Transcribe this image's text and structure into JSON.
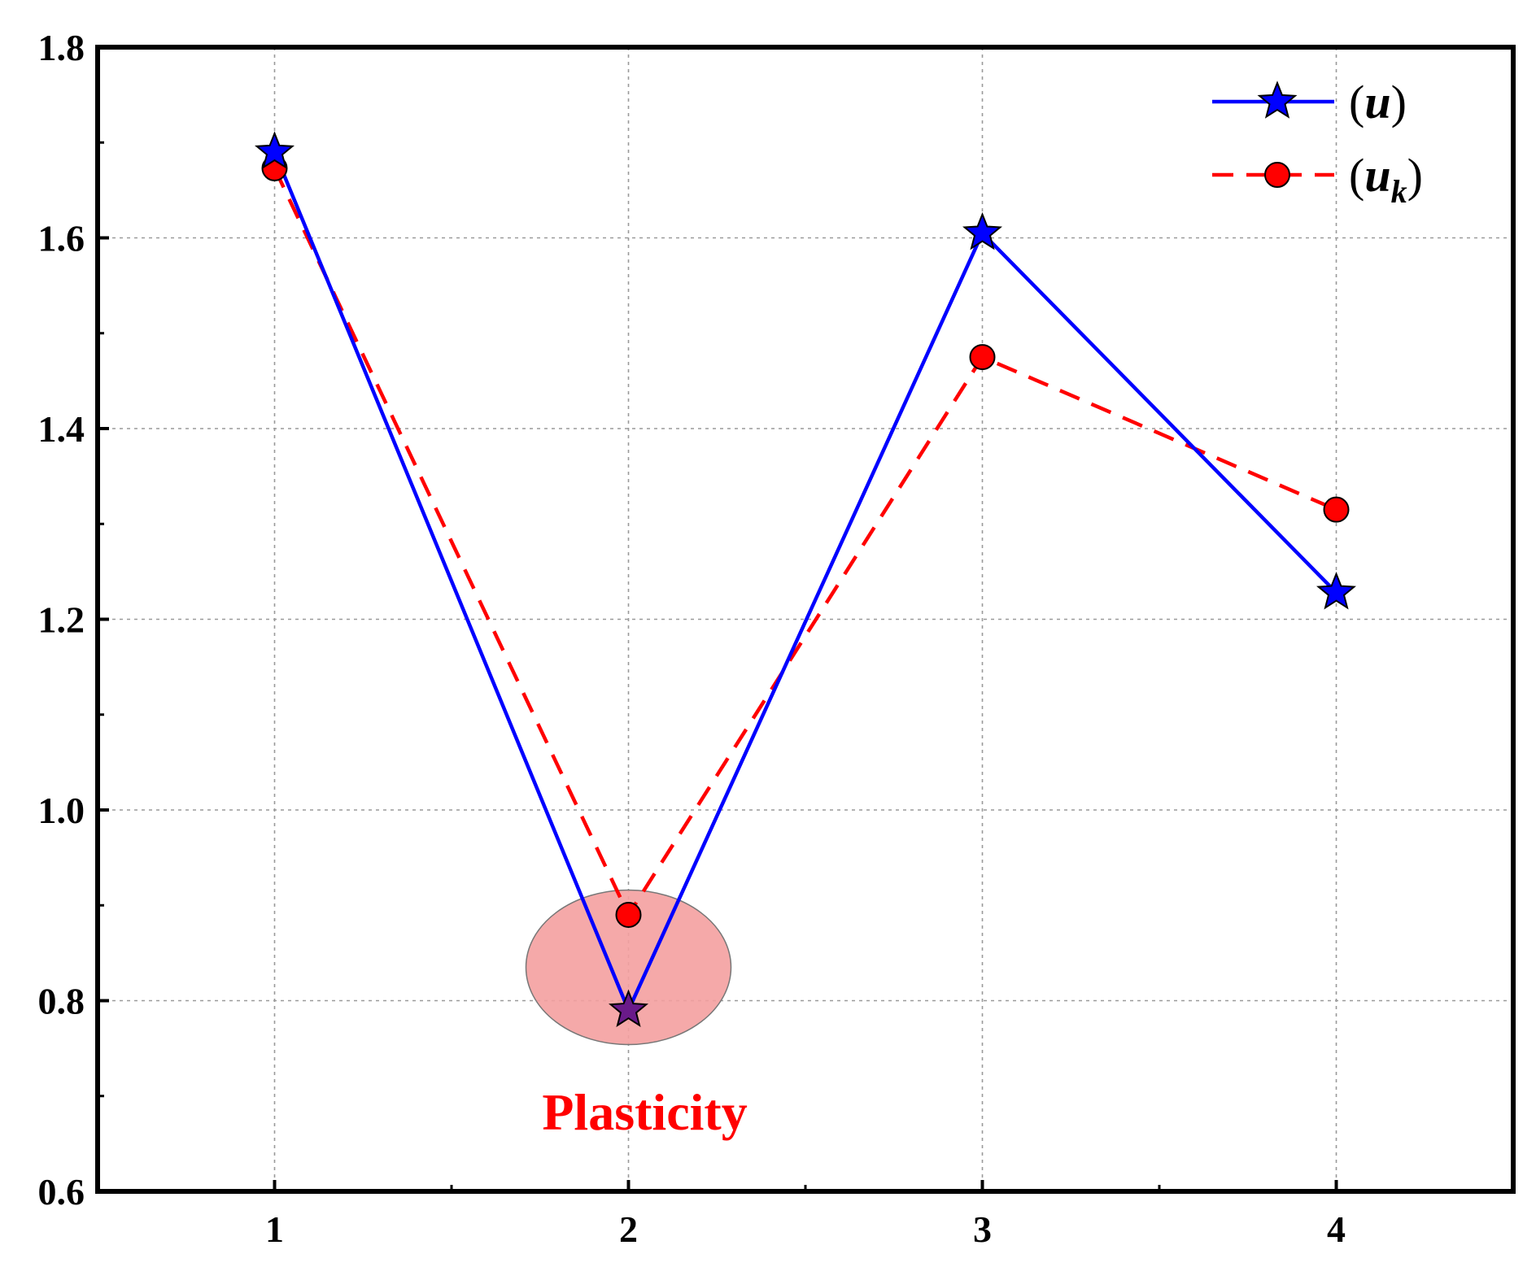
{
  "chart_data": {
    "type": "line",
    "title": "",
    "xlabel": "",
    "ylabel": "",
    "x": [
      1,
      2,
      3,
      4
    ],
    "xticks": [
      "1",
      "2",
      "3",
      "4"
    ],
    "xlim": [
      0.5,
      4.5
    ],
    "ylim": [
      0.6,
      1.8
    ],
    "yticks": [
      "0.6",
      "0.8",
      "1.0",
      "1.2",
      "1.4",
      "1.6",
      "1.8"
    ],
    "grid": true,
    "legend_position": "top-right",
    "series": [
      {
        "name": "u",
        "legend_open": "(",
        "legend_var": "u",
        "legend_sub": "",
        "legend_close": ")",
        "values": [
          1.69,
          0.79,
          1.605,
          1.228
        ],
        "color": "#0000ff",
        "marker": "star",
        "linestyle": "solid"
      },
      {
        "name": "u_k",
        "legend_open": "(",
        "legend_var": "u",
        "legend_sub": "k",
        "legend_close": ")",
        "values": [
          1.673,
          0.89,
          1.475,
          1.315
        ],
        "color": "#ff0000",
        "marker": "circle",
        "linestyle": "dashed"
      }
    ],
    "annotations": [
      {
        "text": "Plasticity",
        "x": 2,
        "y": 0.835,
        "color": "#ff0000",
        "shape": "ellipse",
        "fill": "#f4a0a0"
      }
    ]
  }
}
